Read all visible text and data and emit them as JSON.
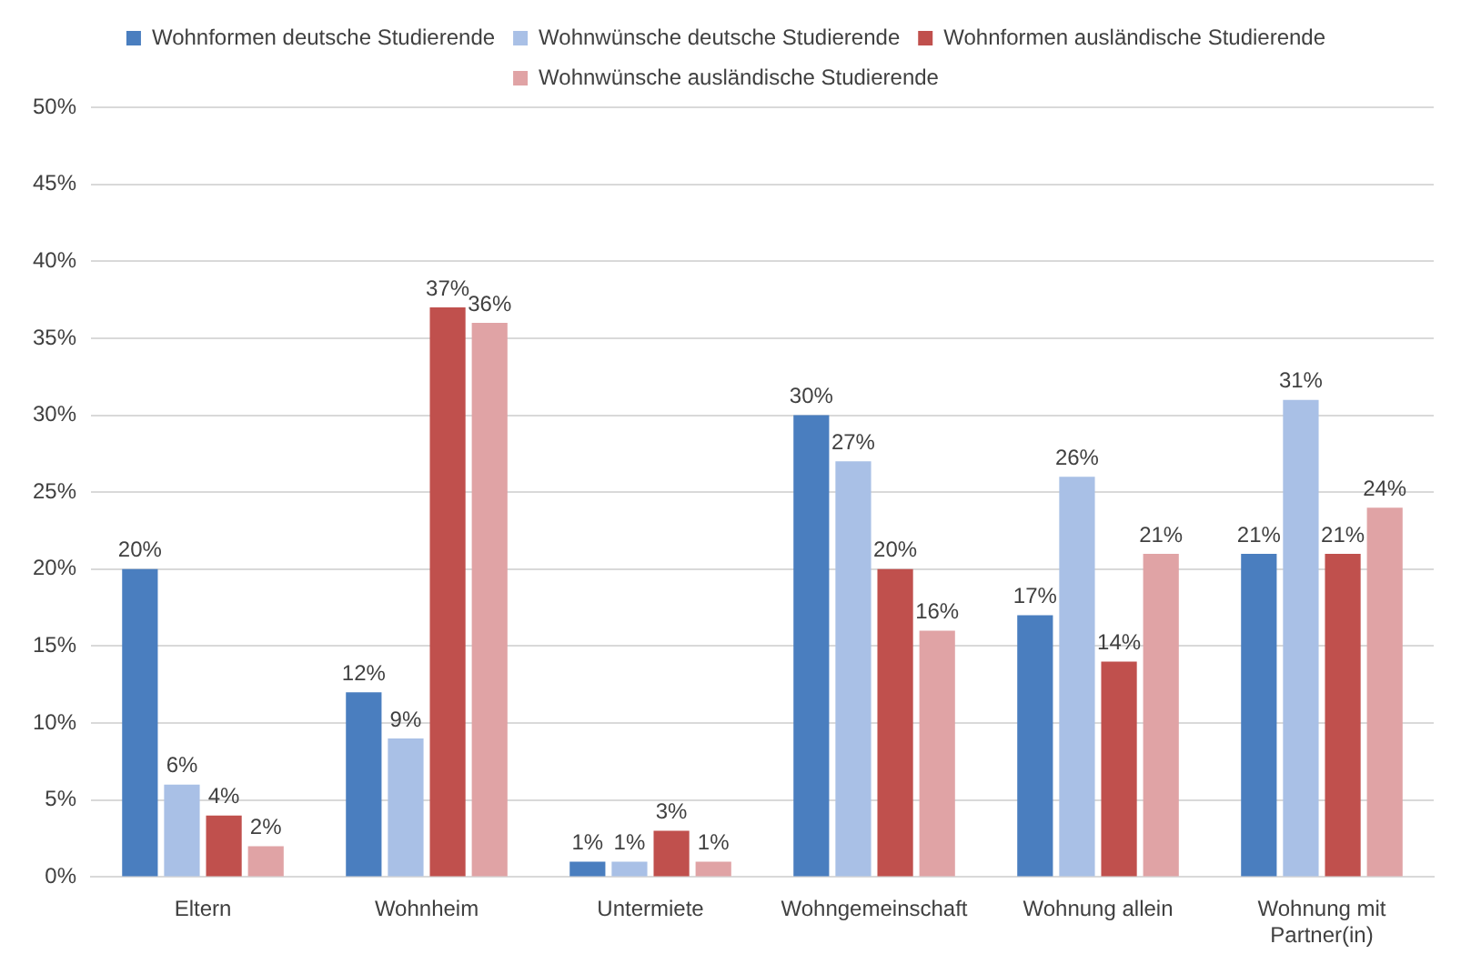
{
  "chart_data": {
    "type": "bar",
    "categories": [
      "Eltern",
      "Wohnheim",
      "Untermiete",
      "Wohngemeinschaft",
      "Wohnung allein",
      "Wohnung mit Partner(in)"
    ],
    "series": [
      {
        "name": "Wohnformen deutsche Studierende",
        "color": "#4a7ebf",
        "values": [
          20,
          12,
          1,
          30,
          17,
          21
        ],
        "value_labels": [
          "20%",
          "12%",
          "1%",
          "30%",
          "17%",
          "21%"
        ]
      },
      {
        "name": "Wohnwünsche deutsche Studierende",
        "color": "#a9c0e6",
        "values": [
          6,
          9,
          1,
          27,
          26,
          31
        ],
        "value_labels": [
          "6%",
          "9%",
          "1%",
          "27%",
          "26%",
          "31%"
        ]
      },
      {
        "name": "Wohnformen ausländische Studierende",
        "color": "#c0504d",
        "values": [
          4,
          37,
          3,
          20,
          14,
          21
        ],
        "value_labels": [
          "4%",
          "37%",
          "3%",
          "20%",
          "14%",
          "21%"
        ]
      },
      {
        "name": "Wohnwünsche ausländische Studierende",
        "color": "#e0a3a5",
        "values": [
          2,
          36,
          1,
          16,
          21,
          24
        ],
        "value_labels": [
          "2%",
          "36%",
          "1%",
          "16%",
          "21%",
          "24%"
        ]
      }
    ],
    "ylim": [
      0,
      50
    ],
    "yticks": [
      {
        "value": 0,
        "label": "0%"
      },
      {
        "value": 5,
        "label": "5%"
      },
      {
        "value": 10,
        "label": "10%"
      },
      {
        "value": 15,
        "label": "15%"
      },
      {
        "value": 20,
        "label": "20%"
      },
      {
        "value": 25,
        "label": "25%"
      },
      {
        "value": 30,
        "label": "30%"
      },
      {
        "value": 35,
        "label": "35%"
      },
      {
        "value": 40,
        "label": "40%"
      },
      {
        "value": 45,
        "label": "45%"
      },
      {
        "value": 50,
        "label": "50%"
      }
    ],
    "grid": "y",
    "legend": "top"
  }
}
